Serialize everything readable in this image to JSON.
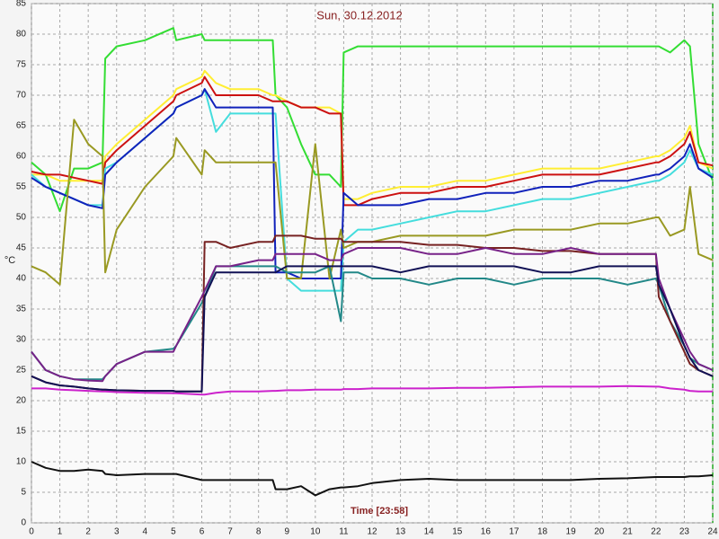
{
  "chart_data": {
    "type": "line",
    "title": "Sun, 30.12.2012",
    "x_label": "Time [23:58]",
    "y_label": "°C",
    "x": [
      0,
      0.5,
      1,
      1.5,
      2,
      2.5,
      2.6,
      3,
      4,
      5,
      5.1,
      6,
      6.1,
      6.5,
      7,
      8,
      8.5,
      8.6,
      9,
      9.5,
      10,
      10.5,
      10.9,
      11,
      11.5,
      12,
      13,
      14,
      15,
      16,
      17,
      18,
      19,
      20,
      21,
      22,
      22.1,
      22.5,
      23,
      23.2,
      23.5,
      24
    ],
    "series": [
      {
        "color": "#33dd33",
        "values": [
          59,
          57,
          51,
          58,
          58,
          59,
          76,
          78,
          79,
          81,
          79,
          80,
          79,
          79,
          79,
          79,
          79,
          70,
          68,
          62,
          57,
          57,
          55,
          77,
          78,
          78,
          78,
          78,
          78,
          78,
          78,
          78,
          78,
          78,
          78,
          78,
          78,
          77,
          79,
          78,
          62,
          56
        ]
      },
      {
        "color": "#ffee33",
        "values": [
          57,
          57,
          56,
          56,
          56,
          56,
          60,
          62,
          66,
          70,
          71,
          73,
          74,
          72,
          71,
          71,
          70,
          70,
          69,
          68,
          68,
          68,
          67,
          53,
          53,
          54,
          55,
          55,
          56,
          56,
          57,
          58,
          58,
          58,
          59,
          60,
          60,
          61,
          63,
          65,
          59,
          58
        ]
      },
      {
        "color": "#cc1111",
        "values": [
          57.5,
          57,
          57,
          56.5,
          56,
          55.5,
          59,
          61,
          65,
          69,
          70,
          72,
          73,
          70,
          70,
          70,
          69,
          69,
          69,
          68,
          68,
          67,
          67,
          52,
          52,
          53,
          54,
          54,
          55,
          55,
          56,
          57,
          57,
          57,
          58,
          59,
          59,
          60,
          62,
          64,
          59,
          58.5
        ]
      },
      {
        "color": "#44dddd",
        "values": [
          57,
          55,
          54,
          53,
          52,
          52,
          58,
          59,
          63,
          67,
          68,
          70,
          71,
          64,
          67,
          67,
          67,
          67,
          40,
          38,
          38,
          38,
          38,
          46,
          48,
          48,
          49,
          50,
          51,
          51,
          52,
          53,
          53,
          54,
          55,
          56,
          56,
          57,
          59,
          61,
          58,
          57
        ]
      },
      {
        "color": "#1122bb",
        "values": [
          56.5,
          55,
          54,
          53,
          52,
          51.5,
          57,
          59,
          63,
          67,
          68,
          70,
          71,
          68,
          68,
          68,
          68,
          41,
          41,
          40,
          40,
          40,
          40,
          54,
          52,
          52,
          52,
          53,
          53,
          54,
          54,
          55,
          55,
          56,
          56,
          57,
          57,
          58,
          60,
          62,
          58,
          56.5
        ]
      },
      {
        "color": "#999922",
        "values": [
          42,
          41,
          39,
          66,
          62,
          60,
          41,
          48,
          55,
          60,
          63,
          57,
          61,
          59,
          59,
          59,
          59,
          59,
          40,
          40,
          62,
          40,
          48,
          45,
          46,
          46,
          47,
          47,
          47,
          47,
          48,
          48,
          48,
          49,
          49,
          50,
          50,
          47,
          48,
          55,
          44,
          43
        ]
      },
      {
        "color": "#cc22cc",
        "values": [
          22,
          22,
          21.8,
          21.7,
          21.6,
          21.5,
          21.5,
          21.4,
          21.3,
          21.2,
          21.2,
          21,
          21,
          21.3,
          21.5,
          21.5,
          21.6,
          21.6,
          21.7,
          21.7,
          21.8,
          21.8,
          21.8,
          21.9,
          21.9,
          22,
          22,
          22,
          22.1,
          22.1,
          22.2,
          22.3,
          22.3,
          22.3,
          22.4,
          22.3,
          22.3,
          22,
          21.8,
          21.6,
          21.5,
          21.5
        ]
      },
      {
        "color": "#111111",
        "values": [
          10,
          9,
          8.5,
          8.5,
          8.7,
          8.5,
          8,
          7.8,
          8,
          8,
          8,
          7,
          7,
          7,
          7,
          7,
          7,
          5.5,
          5.5,
          6,
          4.5,
          5.5,
          5.8,
          5.8,
          6,
          6.5,
          7,
          7.2,
          7,
          7,
          7,
          7,
          7,
          7.2,
          7.3,
          7.5,
          7.5,
          7.5,
          7.5,
          7.6,
          7.6,
          7.8
        ]
      },
      {
        "color": "#228888",
        "values": [
          28,
          25,
          24,
          23.5,
          23.5,
          23.5,
          24,
          26,
          28,
          28.5,
          29,
          36,
          37,
          42,
          42,
          42,
          42,
          42,
          41,
          41,
          41,
          42,
          33,
          41,
          41,
          40,
          40,
          39,
          40,
          40,
          39,
          40,
          40,
          40,
          39,
          40,
          39,
          33,
          29,
          27,
          26,
          25
        ]
      },
      {
        "color": "#772222",
        "values": [
          24,
          23,
          22.5,
          22.3,
          22,
          21.8,
          21.8,
          21.7,
          21.6,
          21.6,
          21.5,
          21.5,
          46,
          46,
          45,
          46,
          46,
          47,
          47,
          47,
          46.5,
          46.5,
          46.5,
          46,
          46,
          46,
          46,
          45.5,
          45.5,
          45,
          45,
          44.5,
          44.5,
          44,
          44,
          44,
          37,
          33,
          28,
          26,
          25,
          24
        ]
      },
      {
        "color": "#772288",
        "values": [
          28,
          25,
          24,
          23.5,
          23.3,
          23.2,
          24,
          26,
          28,
          28,
          29,
          37,
          38,
          42,
          42,
          43,
          43,
          44,
          44,
          44,
          44,
          43,
          43,
          44,
          45,
          45,
          45,
          44,
          44,
          45,
          44,
          44,
          45,
          44,
          44,
          44,
          40,
          35,
          30,
          28,
          26,
          25
        ]
      },
      {
        "color": "#111155",
        "values": [
          24,
          23,
          22.5,
          22.3,
          22,
          21.8,
          21.8,
          21.7,
          21.6,
          21.6,
          21.5,
          21.5,
          37,
          41,
          41,
          41,
          41,
          41,
          42,
          42,
          42,
          42,
          42,
          42,
          42,
          42,
          41,
          42,
          42,
          42,
          42,
          41,
          41,
          42,
          42,
          42,
          39,
          35,
          29,
          27,
          25,
          24
        ]
      }
    ],
    "xlim": [
      0,
      24
    ],
    "xticks": [
      0,
      1,
      2,
      3,
      4,
      5,
      6,
      7,
      8,
      9,
      10,
      11,
      12,
      13,
      14,
      15,
      16,
      17,
      18,
      19,
      20,
      21,
      22,
      23,
      24
    ],
    "ylim": [
      0,
      85
    ],
    "yticks": [
      0,
      5,
      10,
      15,
      20,
      25,
      30,
      35,
      40,
      45,
      50,
      55,
      60,
      65,
      70,
      75,
      80,
      85
    ],
    "grid": true
  }
}
